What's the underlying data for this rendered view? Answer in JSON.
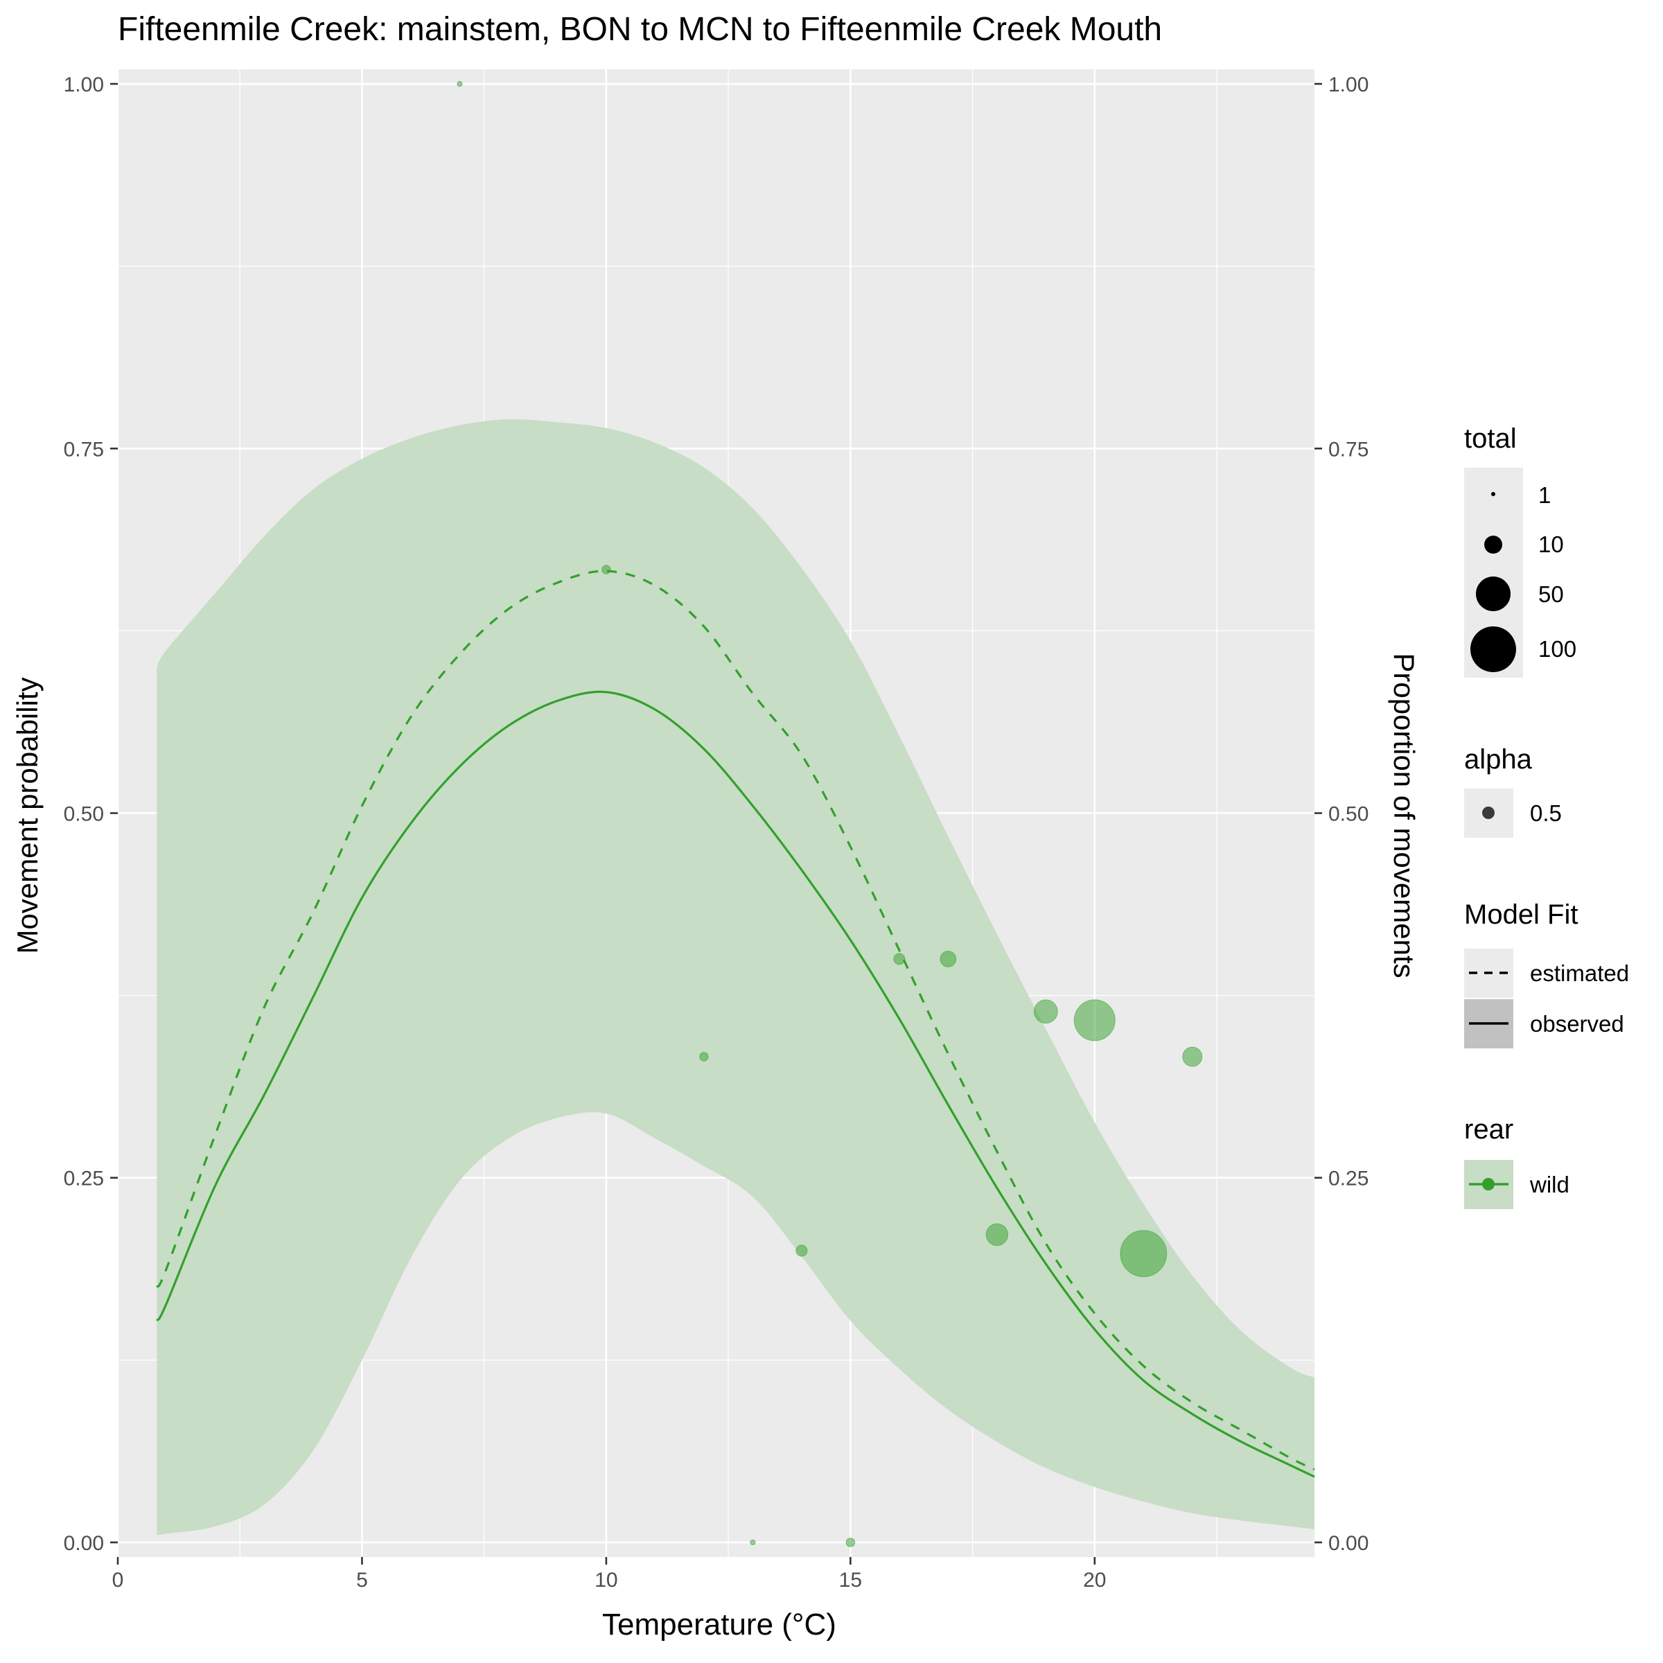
{
  "chart_data": {
    "type": "line",
    "title": "Fifteenmile Creek: mainstem, BON to MCN to Fifteenmile Creek Mouth",
    "xlabel": "Temperature (°C)",
    "ylabel": "Movement probability",
    "ylabel_right": "Proportion of movements",
    "xlim": [
      0,
      24.5
    ],
    "ylim": [
      -0.01,
      1.01
    ],
    "x_ticks": [
      0,
      5,
      10,
      15,
      20
    ],
    "x_tick_labels": [
      "0",
      "5",
      "10",
      "15",
      "20"
    ],
    "y_ticks": [
      0,
      0.25,
      0.5,
      0.75,
      1
    ],
    "y_tick_labels": [
      "0.00",
      "0.25",
      "0.50",
      "0.75",
      "1.00"
    ],
    "grid": true,
    "colors": {
      "series": "#33a02c",
      "band": "#c7ddc5",
      "panel": "#ebebeb",
      "grid": "#ffffff"
    },
    "band": {
      "x": [
        0.8,
        1,
        2,
        3,
        4,
        5,
        6,
        7,
        8,
        9,
        10,
        11,
        12,
        13,
        14,
        15,
        16,
        17,
        18,
        19,
        20,
        21,
        22,
        23,
        24,
        24.5
      ],
      "lower": [
        0.005,
        0.006,
        0.011,
        0.026,
        0.063,
        0.125,
        0.195,
        0.248,
        0.277,
        0.291,
        0.294,
        0.277,
        0.258,
        0.237,
        0.196,
        0.152,
        0.119,
        0.091,
        0.069,
        0.051,
        0.038,
        0.028,
        0.02,
        0.015,
        0.011,
        0.009
      ],
      "upper": [
        0.6,
        0.612,
        0.651,
        0.69,
        0.722,
        0.743,
        0.757,
        0.766,
        0.77,
        0.768,
        0.764,
        0.754,
        0.737,
        0.709,
        0.668,
        0.618,
        0.553,
        0.484,
        0.417,
        0.352,
        0.288,
        0.232,
        0.183,
        0.145,
        0.12,
        0.113
      ]
    },
    "series": [
      {
        "name": "observed",
        "style": "solid",
        "x": [
          0.8,
          1,
          2,
          3,
          4,
          5,
          6,
          7,
          8,
          9,
          10,
          11,
          12,
          13,
          14,
          15,
          16,
          17,
          18,
          19,
          20,
          21,
          22,
          23,
          24,
          24.5
        ],
        "y": [
          0.152,
          0.164,
          0.245,
          0.307,
          0.374,
          0.442,
          0.493,
          0.532,
          0.56,
          0.577,
          0.583,
          0.571,
          0.544,
          0.505,
          0.461,
          0.413,
          0.359,
          0.3,
          0.243,
          0.191,
          0.146,
          0.111,
          0.088,
          0.069,
          0.053,
          0.045
        ]
      },
      {
        "name": "estimated",
        "style": "dashed",
        "x": [
          0.8,
          1,
          2,
          3,
          4,
          5,
          6,
          7,
          8,
          9,
          10,
          11,
          12,
          13,
          14,
          15,
          16,
          17,
          18,
          19,
          20,
          21,
          22,
          23,
          24,
          24.5
        ],
        "y": [
          0.175,
          0.188,
          0.28,
          0.367,
          0.432,
          0.505,
          0.566,
          0.609,
          0.64,
          0.658,
          0.666,
          0.656,
          0.628,
          0.582,
          0.54,
          0.477,
          0.406,
          0.335,
          0.268,
          0.205,
          0.157,
          0.121,
          0.096,
          0.077,
          0.058,
          0.05
        ]
      }
    ],
    "points": [
      {
        "x": 7,
        "y": 1.0,
        "total": 1
      },
      {
        "x": 10,
        "y": 0.667,
        "total": 3
      },
      {
        "x": 12,
        "y": 0.333,
        "total": 3
      },
      {
        "x": 13,
        "y": 0.0,
        "total": 1
      },
      {
        "x": 14,
        "y": 0.2,
        "total": 5
      },
      {
        "x": 15,
        "y": 0.0,
        "total": 3
      },
      {
        "x": 16,
        "y": 0.4,
        "total": 5
      },
      {
        "x": 17,
        "y": 0.4,
        "total": 10
      },
      {
        "x": 18,
        "y": 0.211,
        "total": 19
      },
      {
        "x": 19,
        "y": 0.364,
        "total": 22
      },
      {
        "x": 20,
        "y": 0.358,
        "total": 67
      },
      {
        "x": 21,
        "y": 0.198,
        "total": 86
      },
      {
        "x": 22,
        "y": 0.333,
        "total": 15
      }
    ],
    "legend": {
      "placement": "right",
      "total": {
        "title": "total",
        "entries": [
          {
            "label": "1",
            "value": 1
          },
          {
            "label": "10",
            "value": 10
          },
          {
            "label": "50",
            "value": 50
          },
          {
            "label": "100",
            "value": 100
          }
        ]
      },
      "alpha": {
        "title": "alpha",
        "entries": [
          {
            "label": "0.5"
          }
        ]
      },
      "model_fit": {
        "title": "Model Fit",
        "entries": [
          {
            "label": "estimated",
            "style": "dashed"
          },
          {
            "label": "observed",
            "style": "solid"
          }
        ]
      },
      "rear": {
        "title": "rear",
        "entries": [
          {
            "label": "wild"
          }
        ]
      }
    }
  }
}
